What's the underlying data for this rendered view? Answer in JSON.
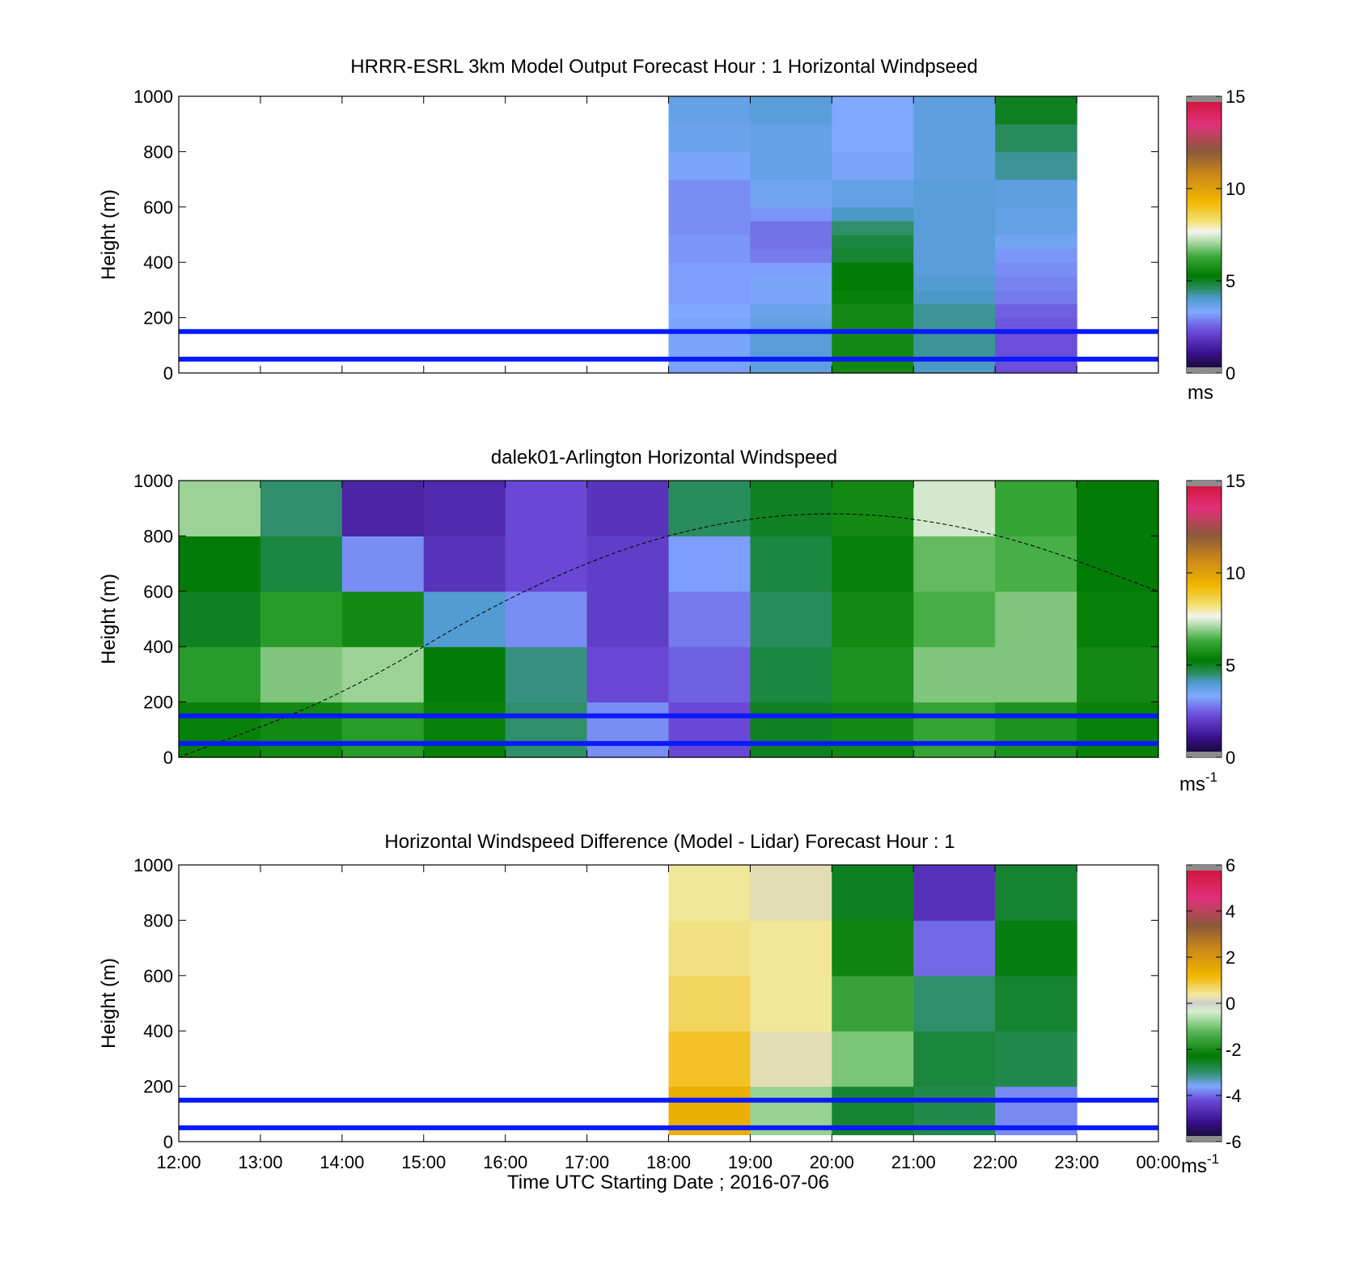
{
  "figure": {
    "xlabel": "Time UTC  Starting Date ; 2016-07-06"
  },
  "chart_data": [
    {
      "type": "heatmap",
      "title": "HRRR-ESRL 3km Model Output   Forecast Hour : 1 Horizontal Windpseed",
      "ylabel": "Height (m)",
      "ylim": [
        0,
        1000
      ],
      "yticks": [
        0,
        200,
        400,
        600,
        800,
        1000
      ],
      "x_range": [
        "12:00",
        "00:00"
      ],
      "colorbar": {
        "ticks": [
          0,
          5,
          10,
          15
        ],
        "unit": "ms"
      },
      "reference_lines_m": [
        50,
        150
      ],
      "grid_heights_m": [
        0,
        25,
        50,
        75,
        100,
        125,
        150,
        175,
        200,
        250,
        300,
        350,
        400,
        450,
        500,
        550,
        600,
        700,
        800,
        900,
        1000
      ],
      "columns": [
        {
          "start": "18:00",
          "end": "19:00",
          "values": [
            3.2,
            3.4,
            3.4,
            3.4,
            3.4,
            3.4,
            3.4,
            3.4,
            3.3,
            3.2,
            3.2,
            3.2,
            3.1,
            3.1,
            3.0,
            3.0,
            3.0,
            3.4,
            3.6,
            3.7
          ]
        },
        {
          "start": "19:00",
          "end": "20:00",
          "values": [
            3.8,
            3.8,
            3.9,
            3.9,
            3.9,
            3.9,
            3.8,
            3.7,
            3.6,
            3.4,
            3.4,
            3.2,
            2.8,
            2.7,
            2.7,
            3.1,
            3.5,
            3.7,
            3.7,
            3.9
          ]
        },
        {
          "start": "20:00",
          "end": "21:00",
          "values": [
            5.6,
            5.6,
            5.6,
            5.6,
            5.6,
            5.6,
            5.6,
            5.6,
            5.6,
            5.4,
            5.3,
            5.2,
            4.9,
            4.8,
            4.5,
            4.1,
            3.7,
            3.4,
            3.3,
            3.3
          ]
        },
        {
          "start": "21:00",
          "end": "22:00",
          "values": [
            4.1,
            4.1,
            4.3,
            4.3,
            4.3,
            4.3,
            4.3,
            4.3,
            4.3,
            4.1,
            4.0,
            3.9,
            3.9,
            3.9,
            3.9,
            3.9,
            3.9,
            3.8,
            3.8,
            3.8
          ]
        },
        {
          "start": "22:00",
          "end": "23:00",
          "values": [
            2.3,
            2.3,
            2.3,
            2.3,
            2.3,
            2.3,
            2.4,
            2.4,
            2.5,
            2.8,
            2.9,
            3.0,
            3.1,
            3.5,
            3.7,
            3.7,
            3.8,
            4.3,
            4.6,
            5.0
          ]
        }
      ]
    },
    {
      "type": "heatmap",
      "title": "dalek01-Arlington  Horizontal Windspeed",
      "ylabel": "Height (m)",
      "ylim": [
        0,
        1000
      ],
      "yticks": [
        0,
        200,
        400,
        600,
        800,
        1000
      ],
      "x_range": [
        "12:00",
        "00:00"
      ],
      "colorbar": {
        "ticks": [
          0,
          5,
          10,
          15
        ],
        "unit": "ms-1"
      },
      "reference_lines_m": [
        50,
        150
      ],
      "grid_heights_m": [
        0,
        200,
        400,
        600,
        800,
        1000
      ],
      "columns": [
        {
          "start": "12:00",
          "end": "13:00",
          "values": [
            5.4,
            6.0,
            5.0,
            5.2,
            7.0
          ]
        },
        {
          "start": "13:00",
          "end": "14:00",
          "values": [
            5.6,
            6.8,
            6.0,
            4.8,
            4.5
          ]
        },
        {
          "start": "14:00",
          "end": "15:00",
          "values": [
            6.0,
            7.0,
            5.6,
            3.0,
            1.5
          ]
        },
        {
          "start": "15:00",
          "end": "16:00",
          "values": [
            5.4,
            5.2,
            4.0,
            1.8,
            1.6
          ]
        },
        {
          "start": "16:00",
          "end": "17:00",
          "values": [
            4.5,
            4.4,
            3.0,
            2.2,
            2.2
          ]
        },
        {
          "start": "17:00",
          "end": "18:00",
          "values": [
            3.0,
            2.2,
            2.0,
            2.0,
            1.8
          ]
        },
        {
          "start": "18:00",
          "end": "19:00",
          "values": [
            2.2,
            2.5,
            2.8,
            3.2,
            4.6
          ]
        },
        {
          "start": "19:00",
          "end": "20:00",
          "values": [
            5.0,
            4.8,
            4.6,
            4.8,
            5.0
          ]
        },
        {
          "start": "20:00",
          "end": "21:00",
          "values": [
            5.6,
            5.8,
            5.6,
            5.4,
            5.6
          ]
        },
        {
          "start": "21:00",
          "end": "22:00",
          "values": [
            6.2,
            6.8,
            6.4,
            6.6,
            7.4
          ]
        },
        {
          "start": "22:00",
          "end": "23:00",
          "values": [
            5.8,
            6.8,
            6.8,
            6.4,
            6.2
          ]
        },
        {
          "start": "23:00",
          "end": "00:00",
          "values": [
            5.4,
            5.6,
            5.4,
            5.2,
            5.2
          ]
        }
      ],
      "annotation": {
        "type": "dashed-curve",
        "points": [
          [
            "12:00",
            0
          ],
          [
            "14:00",
            220
          ],
          [
            "16:00",
            580
          ],
          [
            "18:00",
            820
          ],
          [
            "20:00",
            900
          ],
          [
            "22:00",
            820
          ],
          [
            "00:00",
            600
          ]
        ]
      }
    },
    {
      "type": "heatmap",
      "title": "Horizontal Windspeed Difference (Model - Lidar) Forecast Hour : 1",
      "ylabel": "Height (m)",
      "ylim": [
        0,
        1000
      ],
      "yticks": [
        0,
        200,
        400,
        600,
        800,
        1000
      ],
      "x_range": [
        "12:00",
        "00:00"
      ],
      "xticks": [
        "12:00",
        "13:00",
        "14:00",
        "15:00",
        "16:00",
        "17:00",
        "18:00",
        "19:00",
        "20:00",
        "21:00",
        "22:00",
        "23:00",
        "00:00"
      ],
      "colorbar": {
        "ticks": [
          -6,
          -4,
          -2,
          0,
          2,
          4,
          6
        ],
        "unit": "ms-1"
      },
      "reference_lines_m": [
        50,
        150
      ],
      "grid_heights_m": [
        25,
        200,
        400,
        600,
        800,
        1000
      ],
      "columns": [
        {
          "start": "18:00",
          "end": "19:00",
          "values": [
            1.4,
            1.0,
            0.7,
            0.5,
            0.4
          ]
        },
        {
          "start": "19:00",
          "end": "20:00",
          "values": [
            -0.8,
            0.2,
            0.4,
            0.4,
            0.2
          ]
        },
        {
          "start": "20:00",
          "end": "21:00",
          "values": [
            -2.6,
            -1.0,
            -1.6,
            -2.1,
            -2.5
          ]
        },
        {
          "start": "21:00",
          "end": "22:00",
          "values": [
            -2.8,
            -2.7,
            -3.0,
            -4.0,
            -4.6
          ]
        },
        {
          "start": "22:00",
          "end": "23:00",
          "values": [
            -3.8,
            -2.8,
            -2.6,
            -2.4,
            -2.6
          ]
        }
      ]
    }
  ]
}
